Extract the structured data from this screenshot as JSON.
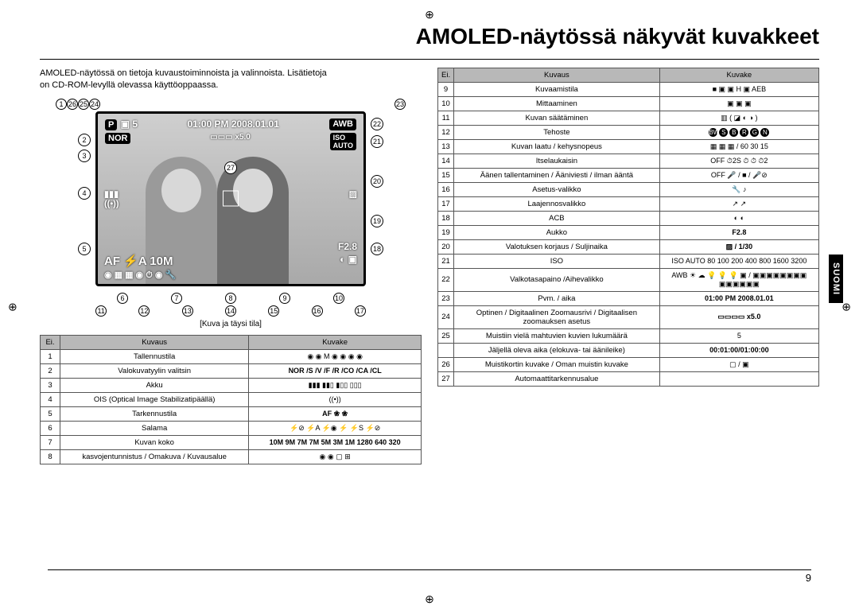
{
  "page_title": "AMOLED-näytössä näkyvät kuvakkeet",
  "intro_line1": "AMOLED-näytössä on tietoja kuvaustoiminnoista ja valinnoista. Lisätietoja",
  "intro_line2": "on CD-ROM-levyllä olevassa käyttöoppaassa.",
  "display_caption": "[Kuva ja täysi tila]",
  "side_tab": "SUOMI",
  "page_number": "9",
  "overlay": {
    "count": "5",
    "datetime": "01:00 PM 2008.01.01",
    "awb": "AWB",
    "nor": "NOR",
    "zoom": "x5.0",
    "iso": "ISO",
    "iso_auto": "AUTO",
    "aperture": "F2.8",
    "af": "AF",
    "flash": "⚡A",
    "mp": "10M"
  },
  "headers": {
    "no": "Ei.",
    "desc": "Kuvaus",
    "icon": "Kuvake"
  },
  "left_rows": [
    {
      "n": "1",
      "d": "Tallennustila",
      "i": "◉ ◉ M ◉ ◉ ◉ ◉"
    },
    {
      "n": "2",
      "d": "Valokuvatyylin valitsin",
      "i": "NOR /S /V /F /R /CO /CA /CL"
    },
    {
      "n": "3",
      "d": "Akku",
      "i": "▮▮▮ ▮▮▯ ▮▯▯ ▯▯▯"
    },
    {
      "n": "4",
      "d": "OIS (Optical Image Stabilizatipäällä)",
      "i": "((•))"
    },
    {
      "n": "5",
      "d": "Tarkennustila",
      "i": "AF  ❀  ❀"
    },
    {
      "n": "6",
      "d": "Salama",
      "i": "⚡⊘  ⚡A  ⚡◉  ⚡  ⚡S  ⚡⊘"
    },
    {
      "n": "7",
      "d": "Kuvan koko",
      "i": "10M 9M 7M 7M 5M 3M 1M 1280 640 320"
    },
    {
      "n": "8",
      "d": "kasvojentunnistus / Omakuva / Kuvausalue",
      "i": "◉ ◉ ▢ ⊞"
    }
  ],
  "right_rows": [
    {
      "n": "9",
      "d": "Kuvaamistila",
      "i": "■ ▣ ▣ H ▣ AEB"
    },
    {
      "n": "10",
      "d": "Mittaaminen",
      "i": "▣ ▣ ▣"
    },
    {
      "n": "11",
      "d": "Kuvan säätäminen",
      "i": "▥ ( ◪ ◐ ◑ )"
    },
    {
      "n": "12",
      "d": "Tehoste",
      "i": "BW S B R G N"
    },
    {
      "n": "13",
      "d": "Kuvan laatu / kehysnopeus",
      "i": "▦ ▦ ▦ / 60 30 15"
    },
    {
      "n": "14",
      "d": "Itselaukaisin",
      "i": "OFF ⏱2S ⏱ ⏱ ⏱2"
    },
    {
      "n": "15",
      "d": "Äänen tallentaminen / Ääniviesti / ilman ääntä",
      "i": "OFF 🎤 / ■ / 🎤⊘"
    },
    {
      "n": "16",
      "d": "Asetus-valikko",
      "i": "🔧 ♪"
    },
    {
      "n": "17",
      "d": "Laajennosvalikko",
      "i": "↗ ↗"
    },
    {
      "n": "18",
      "d": "ACB",
      "i": "◐ ◐"
    },
    {
      "n": "19",
      "d": "Aukko",
      "i": "F2.8"
    },
    {
      "n": "20",
      "d": "Valotuksen korjaus / Suljinaika",
      "i": "▨ / 1/30"
    },
    {
      "n": "21",
      "d": "ISO",
      "i": "ISO AUTO 80 100 200 400 800 1600 3200"
    },
    {
      "n": "22",
      "d": "Valkotasapaino /Aihevalikko",
      "i": "AWB ☀ ☁ 💡 💡 💡 ▣ / ▣▣▣▣▣▣▣▣ ▣▣▣▣▣▣"
    },
    {
      "n": "23",
      "d": "Pvm. / aika",
      "i": "01:00 PM 2008.01.01"
    },
    {
      "n": "24",
      "d": "Optinen / Digitaalinen Zoomausrivi / Digitaalisen zoomauksen asetus",
      "i": "▭▭▭▭ x5.0"
    },
    {
      "n": "25",
      "d": "Muistiin vielä mahtuvien kuvien lukumäärä",
      "i": "5"
    },
    {
      "n": "25b",
      "d": "Jäljellä oleva aika (elokuva- tai äänileike)",
      "i": "00:01:00/01:00:00"
    },
    {
      "n": "26",
      "d": "Muistikortin kuvake / Oman muistin kuvake",
      "i": "▢ / ▣"
    },
    {
      "n": "27",
      "d": "Automaattitarkennusalue",
      "i": ""
    }
  ]
}
